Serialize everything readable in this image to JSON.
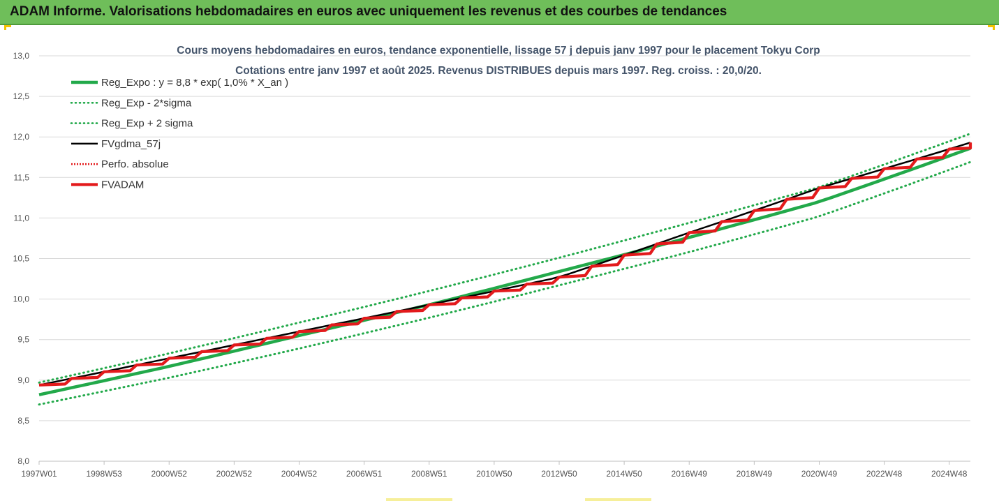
{
  "banner": {
    "title": "ADAM Informe. Valorisations hebdomadaires en euros avec uniquement les revenus et des courbes de tendances"
  },
  "chart_data": {
    "type": "line",
    "title": "Cours moyens hebdomadaires en euros, tendance exponentielle, lissage 57 j depuis janv 1997 pour le placement Tokyu Corp",
    "subtitle": "Cotations entre janv 1997 et août 2025. Revenus DISTRIBUES depuis mars 1997. Reg. croiss. : 20,0/20.",
    "x_range": [
      1997.0,
      2025.65
    ],
    "x_ticks": [
      {
        "label": "1997W01",
        "x": 1997.0
      },
      {
        "label": "1998W53",
        "x": 1999.0
      },
      {
        "label": "2000W52",
        "x": 2001.0
      },
      {
        "label": "2002W52",
        "x": 2003.0
      },
      {
        "label": "2004W52",
        "x": 2005.0
      },
      {
        "label": "2006W51",
        "x": 2007.0
      },
      {
        "label": "2008W51",
        "x": 2009.0
      },
      {
        "label": "2010W50",
        "x": 2011.0
      },
      {
        "label": "2012W50",
        "x": 2013.0
      },
      {
        "label": "2014W50",
        "x": 2015.0
      },
      {
        "label": "2016W49",
        "x": 2017.0
      },
      {
        "label": "2018W49",
        "x": 2019.0
      },
      {
        "label": "2020W49",
        "x": 2021.0
      },
      {
        "label": "2022W48",
        "x": 2023.0
      },
      {
        "label": "2024W48",
        "x": 2025.0
      }
    ],
    "ylim": [
      8.0,
      13.0
    ],
    "y_ticks": [
      "8,0",
      "8,5",
      "9,0",
      "9,5",
      "10,0",
      "10,5",
      "11,0",
      "11,5",
      "12,0",
      "12,5",
      "13,0"
    ],
    "grid": true,
    "legend_position": "top-left",
    "series": [
      {
        "name": "Reg_Expo : y = 8,8 * exp( 1,0% *  X_an )",
        "color": "#22a94a",
        "style": "solid-thick",
        "x": [
          1997.0,
          2001.0,
          2005.0,
          2009.0,
          2013.0,
          2017.0,
          2021.0,
          2025.65
        ],
        "values": [
          8.82,
          9.17,
          9.55,
          9.93,
          10.34,
          10.76,
          11.2,
          11.86
        ]
      },
      {
        "name": "Reg_Exp - 2*sigma",
        "color": "#22a94a",
        "style": "dotted",
        "x": [
          1997.0,
          2001.0,
          2005.0,
          2009.0,
          2013.0,
          2017.0,
          2021.0,
          2025.65
        ],
        "values": [
          8.7,
          9.03,
          9.39,
          9.77,
          10.17,
          10.58,
          11.02,
          11.69
        ]
      },
      {
        "name": "Reg_Exp + 2 sigma",
        "color": "#22a94a",
        "style": "dotted",
        "x": [
          1997.0,
          2001.0,
          2005.0,
          2009.0,
          2013.0,
          2017.0,
          2021.0,
          2025.65
        ],
        "values": [
          8.97,
          9.33,
          9.71,
          10.1,
          10.51,
          10.94,
          11.38,
          12.04
        ]
      },
      {
        "name": "FVgdma_57j",
        "color": "#000000",
        "style": "solid",
        "x": [
          1997.0,
          2001.0,
          2005.0,
          2009.0,
          2013.0,
          2017.0,
          2021.0,
          2025.65
        ],
        "values": [
          8.94,
          9.27,
          9.6,
          9.93,
          10.27,
          10.82,
          11.37,
          11.93
        ]
      },
      {
        "name": "Perfo. absolue",
        "color": "#e31a1c",
        "style": "dotted",
        "values": []
      },
      {
        "name": "FVADAM",
        "color": "#e31a1c",
        "style": "stepped",
        "x": [
          1997.0,
          2001.0,
          2005.0,
          2009.0,
          2013.0,
          2017.0,
          2021.0,
          2025.65
        ],
        "values": [
          8.94,
          9.27,
          9.6,
          9.93,
          10.27,
          10.82,
          11.37,
          11.93
        ]
      }
    ]
  }
}
